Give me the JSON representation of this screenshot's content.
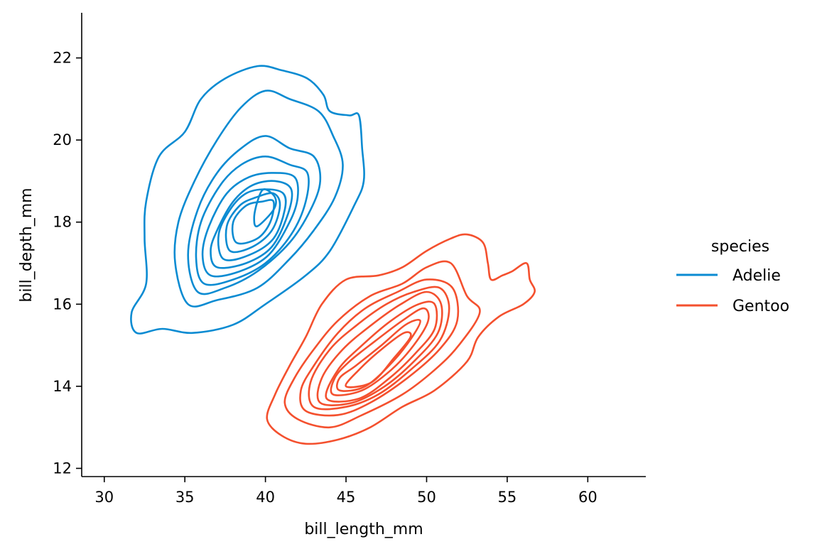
{
  "chart_data": {
    "type": "kde-contour",
    "xlabel": "bill_length_mm",
    "ylabel": "bill_depth_mm",
    "xlim": [
      28.6,
      63.6
    ],
    "ylim": [
      11.8,
      23.1
    ],
    "xticks": [
      30,
      35,
      40,
      45,
      50,
      55,
      60
    ],
    "yticks": [
      12,
      14,
      16,
      18,
      20,
      22
    ],
    "grid": false,
    "legend": {
      "title": "species",
      "placement": "right"
    },
    "series": [
      {
        "name": "Adelie",
        "color": "#0a8bd2",
        "center": [
          39.8,
          18.4
        ],
        "contours": [
          [
            [
              32.0,
              15.3
            ],
            [
              33.6,
              15.4
            ],
            [
              35.5,
              15.3
            ],
            [
              38.0,
              15.5
            ],
            [
              40.0,
              16.0
            ],
            [
              42.5,
              16.7
            ],
            [
              44.0,
              17.3
            ],
            [
              45.5,
              18.4
            ],
            [
              46.1,
              19.0
            ],
            [
              46.0,
              19.8
            ],
            [
              45.8,
              20.6
            ],
            [
              45.2,
              20.6
            ],
            [
              44.0,
              20.7
            ],
            [
              43.6,
              21.1
            ],
            [
              42.6,
              21.5
            ],
            [
              41.0,
              21.7
            ],
            [
              39.5,
              21.8
            ],
            [
              37.5,
              21.5
            ],
            [
              36.0,
              21.0
            ],
            [
              35.0,
              20.2
            ],
            [
              33.4,
              19.6
            ],
            [
              32.6,
              18.5
            ],
            [
              32.5,
              17.6
            ],
            [
              32.6,
              16.5
            ],
            [
              31.7,
              15.8
            ]
          ],
          [
            [
              35.2,
              16.0
            ],
            [
              37.0,
              16.1
            ],
            [
              39.5,
              16.4
            ],
            [
              41.5,
              17.1
            ],
            [
              43.0,
              17.8
            ],
            [
              44.3,
              18.6
            ],
            [
              44.8,
              19.4
            ],
            [
              44.2,
              20.1
            ],
            [
              43.3,
              20.7
            ],
            [
              41.5,
              21.0
            ],
            [
              40.0,
              21.2
            ],
            [
              38.5,
              20.8
            ],
            [
              37.0,
              20.0
            ],
            [
              35.6,
              19.0
            ],
            [
              34.6,
              18.0
            ],
            [
              34.4,
              17.0
            ]
          ],
          [
            [
              35.8,
              16.3
            ],
            [
              37.5,
              16.4
            ],
            [
              39.5,
              16.8
            ],
            [
              41.5,
              17.5
            ],
            [
              42.8,
              18.3
            ],
            [
              43.4,
              19.0
            ],
            [
              43.0,
              19.6
            ],
            [
              41.5,
              19.8
            ],
            [
              40.0,
              20.1
            ],
            [
              38.5,
              19.8
            ],
            [
              37.0,
              19.2
            ],
            [
              35.8,
              18.3
            ],
            [
              35.2,
              17.2
            ]
          ],
          [
            [
              36.2,
              16.5
            ],
            [
              38.0,
              16.6
            ],
            [
              40.0,
              17.0
            ],
            [
              41.6,
              17.7
            ],
            [
              42.5,
              18.5
            ],
            [
              42.6,
              19.2
            ],
            [
              41.5,
              19.4
            ],
            [
              40.0,
              19.6
            ],
            [
              38.5,
              19.4
            ],
            [
              37.2,
              18.9
            ],
            [
              36.0,
              18.0
            ],
            [
              35.7,
              17.1
            ]
          ],
          [
            [
              36.6,
              16.7
            ],
            [
              38.4,
              16.8
            ],
            [
              40.2,
              17.2
            ],
            [
              41.5,
              18.0
            ],
            [
              42.0,
              18.6
            ],
            [
              41.8,
              19.1
            ],
            [
              40.5,
              19.2
            ],
            [
              39.0,
              19.1
            ],
            [
              37.6,
              18.7
            ],
            [
              36.5,
              17.9
            ],
            [
              36.1,
              17.2
            ]
          ],
          [
            [
              37.0,
              16.9
            ],
            [
              38.8,
              17.0
            ],
            [
              40.4,
              17.4
            ],
            [
              41.4,
              18.2
            ],
            [
              41.6,
              18.8
            ],
            [
              40.6,
              19.0
            ],
            [
              39.2,
              18.9
            ],
            [
              38.0,
              18.5
            ],
            [
              37.0,
              17.8
            ],
            [
              36.6,
              17.3
            ]
          ],
          [
            [
              37.4,
              17.1
            ],
            [
              39.0,
              17.2
            ],
            [
              40.5,
              17.6
            ],
            [
              41.2,
              18.3
            ],
            [
              41.1,
              18.7
            ],
            [
              40.0,
              18.8
            ],
            [
              38.8,
              18.7
            ],
            [
              37.8,
              18.3
            ],
            [
              37.1,
              17.7
            ]
          ],
          [
            [
              37.8,
              17.3
            ],
            [
              39.2,
              17.4
            ],
            [
              40.4,
              17.8
            ],
            [
              40.9,
              18.4
            ],
            [
              40.5,
              18.7
            ],
            [
              39.4,
              18.6
            ],
            [
              38.4,
              18.4
            ],
            [
              37.6,
              17.9
            ]
          ],
          [
            [
              38.2,
              17.5
            ],
            [
              39.5,
              17.6
            ],
            [
              40.3,
              18.0
            ],
            [
              40.5,
              18.5
            ],
            [
              39.8,
              18.5
            ],
            [
              38.8,
              18.4
            ],
            [
              38.0,
              18.0
            ]
          ],
          [
            [
              39.5,
              17.9
            ],
            [
              40.5,
              18.3
            ],
            [
              40.6,
              18.6
            ],
            [
              39.9,
              18.8
            ],
            [
              39.5,
              18.5
            ],
            [
              39.3,
              18.1
            ]
          ]
        ]
      },
      {
        "name": "Gentoo",
        "color": "#f4502e",
        "center": [
          46.5,
          14.6
        ],
        "contours": [
          [
            [
              41.0,
              12.8
            ],
            [
              42.5,
              12.6
            ],
            [
              44.5,
              12.7
            ],
            [
              46.5,
              13.0
            ],
            [
              48.5,
              13.5
            ],
            [
              50.5,
              13.9
            ],
            [
              52.5,
              14.6
            ],
            [
              53.2,
              15.2
            ],
            [
              54.5,
              15.7
            ],
            [
              56.0,
              16.0
            ],
            [
              56.7,
              16.3
            ],
            [
              56.4,
              16.6
            ],
            [
              56.2,
              17.0
            ],
            [
              55.3,
              16.8
            ],
            [
              54.7,
              16.7
            ],
            [
              54.0,
              16.6
            ],
            [
              53.8,
              17.0
            ],
            [
              53.5,
              17.5
            ],
            [
              52.5,
              17.7
            ],
            [
              51.5,
              17.6
            ],
            [
              50.0,
              17.3
            ],
            [
              48.5,
              16.9
            ],
            [
              47.0,
              16.7
            ],
            [
              45.0,
              16.6
            ],
            [
              43.5,
              16.0
            ],
            [
              42.5,
              15.2
            ],
            [
              41.5,
              14.5
            ],
            [
              40.6,
              13.8
            ],
            [
              40.1,
              13.2
            ]
          ],
          [
            [
              42.0,
              13.2
            ],
            [
              44.0,
              13.0
            ],
            [
              46.0,
              13.3
            ],
            [
              48.5,
              13.8
            ],
            [
              50.5,
              14.4
            ],
            [
              52.0,
              15.0
            ],
            [
              53.3,
              15.8
            ],
            [
              52.5,
              16.2
            ],
            [
              51.5,
              17.0
            ],
            [
              50.0,
              16.9
            ],
            [
              48.5,
              16.5
            ],
            [
              46.5,
              16.2
            ],
            [
              44.5,
              15.6
            ],
            [
              43.0,
              14.9
            ],
            [
              41.8,
              14.2
            ],
            [
              41.2,
              13.6
            ]
          ],
          [
            [
              42.5,
              13.4
            ],
            [
              44.5,
              13.3
            ],
            [
              46.5,
              13.6
            ],
            [
              48.8,
              14.2
            ],
            [
              50.8,
              14.9
            ],
            [
              51.9,
              15.6
            ],
            [
              51.6,
              16.4
            ],
            [
              50.0,
              16.6
            ],
            [
              48.2,
              16.3
            ],
            [
              46.2,
              15.9
            ],
            [
              44.5,
              15.3
            ],
            [
              43.0,
              14.5
            ],
            [
              42.2,
              13.9
            ]
          ],
          [
            [
              43.0,
              13.5
            ],
            [
              45.0,
              13.5
            ],
            [
              47.0,
              13.8
            ],
            [
              49.0,
              14.4
            ],
            [
              50.8,
              15.1
            ],
            [
              51.4,
              15.9
            ],
            [
              50.8,
              16.4
            ],
            [
              49.2,
              16.3
            ],
            [
              47.5,
              16.0
            ],
            [
              45.7,
              15.5
            ],
            [
              44.0,
              14.9
            ],
            [
              42.8,
              14.1
            ]
          ],
          [
            [
              43.4,
              13.6
            ],
            [
              45.4,
              13.6
            ],
            [
              47.4,
              14.0
            ],
            [
              49.2,
              14.6
            ],
            [
              50.7,
              15.3
            ],
            [
              50.9,
              16.0
            ],
            [
              50.0,
              16.3
            ],
            [
              48.4,
              16.0
            ],
            [
              46.6,
              15.5
            ],
            [
              44.8,
              14.9
            ],
            [
              43.5,
              14.2
            ]
          ],
          [
            [
              43.8,
              13.7
            ],
            [
              45.8,
              13.7
            ],
            [
              47.7,
              14.2
            ],
            [
              49.3,
              14.8
            ],
            [
              50.5,
              15.4
            ],
            [
              50.5,
              16.0
            ],
            [
              49.5,
              16.0
            ],
            [
              47.8,
              15.6
            ],
            [
              46.0,
              15.0
            ],
            [
              44.5,
              14.4
            ]
          ],
          [
            [
              44.2,
              13.8
            ],
            [
              46.0,
              13.9
            ],
            [
              47.8,
              14.4
            ],
            [
              49.2,
              15.0
            ],
            [
              50.1,
              15.6
            ],
            [
              49.8,
              15.9
            ],
            [
              48.5,
              15.6
            ],
            [
              46.8,
              15.1
            ],
            [
              45.2,
              14.6
            ],
            [
              44.3,
              14.2
            ]
          ],
          [
            [
              44.6,
              13.9
            ],
            [
              46.2,
              14.0
            ],
            [
              47.9,
              14.6
            ],
            [
              49.1,
              15.2
            ],
            [
              49.6,
              15.6
            ],
            [
              48.7,
              15.5
            ],
            [
              47.2,
              15.0
            ],
            [
              45.6,
              14.5
            ],
            [
              44.6,
              14.2
            ]
          ],
          [
            [
              45.0,
              14.0
            ],
            [
              46.6,
              14.1
            ],
            [
              48.0,
              14.7
            ],
            [
              49.0,
              15.2
            ],
            [
              48.6,
              15.3
            ],
            [
              47.2,
              14.9
            ],
            [
              45.8,
              14.4
            ]
          ]
        ]
      }
    ]
  }
}
